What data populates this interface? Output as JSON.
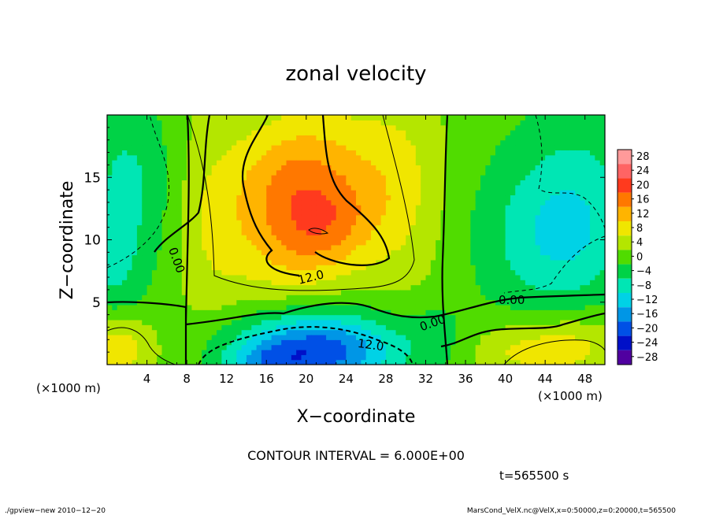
{
  "chart_data": {
    "type": "heatmap",
    "title": "zonal velocity",
    "xlabel": "X−coordinate",
    "ylabel": "Z−coordinate",
    "x_unit_left": "(×1000 m)",
    "x_unit_right": "(×1000 m)",
    "xlim": [
      0,
      50
    ],
    "ylim": [
      0,
      20
    ],
    "x_ticks": [
      {
        "value": 4,
        "label": "4"
      },
      {
        "value": 8,
        "label": "8"
      },
      {
        "value": 12,
        "label": "12"
      },
      {
        "value": 16,
        "label": "16"
      },
      {
        "value": 20,
        "label": "20"
      },
      {
        "value": 24,
        "label": "24"
      },
      {
        "value": 28,
        "label": "28"
      },
      {
        "value": 32,
        "label": "32"
      },
      {
        "value": 36,
        "label": "36"
      },
      {
        "value": 40,
        "label": "40"
      },
      {
        "value": 44,
        "label": "44"
      },
      {
        "value": 48,
        "label": "48"
      }
    ],
    "y_ticks": [
      {
        "value": 5,
        "label": "5"
      },
      {
        "value": 10,
        "label": "10"
      },
      {
        "value": 15,
        "label": "15"
      }
    ],
    "colorbar": {
      "levels": [
        28,
        24,
        20,
        16,
        12,
        8,
        4,
        0,
        -4,
        -8,
        -12,
        -16,
        -20,
        -24,
        -28
      ],
      "labels": [
        "28",
        "24",
        "20",
        "16",
        "12",
        "8",
        "4",
        "0",
        "−4",
        "−8",
        "−12",
        "−16",
        "−20",
        "−24",
        "−28"
      ],
      "colors": [
        "#ff9a9a",
        "#ff6464",
        "#ff3a1e",
        "#ff7800",
        "#ffb400",
        "#f0e600",
        "#b4e600",
        "#50dc00",
        "#00d246",
        "#00e6b4",
        "#00d2e6",
        "#0096e6",
        "#0050e6",
        "#0010c8",
        "#5000a0"
      ]
    },
    "contour_labels": [
      "0.00",
      "12.0",
      "0.00",
      "0.00",
      "12.0"
    ],
    "contour_interval_text": "CONTOUR INTERVAL = 6.000E+00",
    "time_text": "t=565500 s",
    "footer_left": "./gpview−new   2010−12−20",
    "footer_right": "MarsCond_VelX.nc@VelX,x=0:50000,z=0:20000,t=565500",
    "field_blobs": [
      {
        "x": 20,
        "z": 13,
        "sx": 6.0,
        "sz": 4.5,
        "u": 14,
        "rot": -0.35
      },
      {
        "x": 22,
        "z": 10.8,
        "sx": 3.5,
        "sz": 2.2,
        "u": 5,
        "rot": -0.3
      },
      {
        "x": 18,
        "z": 15.5,
        "sx": 3.5,
        "sz": 3.0,
        "u": 3,
        "rot": 0
      },
      {
        "x": 21,
        "z": 1.2,
        "sx": 6.0,
        "sz": 2.2,
        "u": -22,
        "rot": 0
      },
      {
        "x": 16,
        "z": 0.3,
        "sx": 3.0,
        "sz": 1.0,
        "u": -6,
        "rot": 0
      },
      {
        "x": 2,
        "z": 14,
        "sx": 3.5,
        "sz": 6.0,
        "u": -8,
        "rot": 0
      },
      {
        "x": 0.5,
        "z": 7,
        "sx": 2.0,
        "sz": 3.0,
        "u": -4,
        "rot": 0
      },
      {
        "x": 46,
        "z": 10,
        "sx": 5.0,
        "sz": 4.0,
        "u": -9,
        "rot": 0
      },
      {
        "x": 48,
        "z": 16,
        "sx": 4.0,
        "sz": 4.0,
        "u": -4,
        "rot": 0
      },
      {
        "x": 42,
        "z": 12,
        "sx": 6.0,
        "sz": 8.0,
        "u": -3,
        "rot": 0
      },
      {
        "x": 1,
        "z": 1.5,
        "sx": 2.5,
        "sz": 1.8,
        "u": 9,
        "rot": 0
      },
      {
        "x": 46,
        "z": 1.5,
        "sx": 4.0,
        "sz": 1.8,
        "u": 8,
        "rot": 0
      },
      {
        "x": 40,
        "z": 1.0,
        "sx": 3.0,
        "sz": 1.5,
        "u": 4,
        "rot": 0
      },
      {
        "x": 33,
        "z": 2.5,
        "sx": 2.0,
        "sz": 2.0,
        "u": -3,
        "rot": 0
      },
      {
        "x": 10,
        "z": 12,
        "sx": 2.5,
        "sz": 7.0,
        "u": 3,
        "rot": 0
      },
      {
        "x": 30,
        "z": 14,
        "sx": 3.0,
        "sz": 6.0,
        "u": 4,
        "rot": 0
      }
    ],
    "field_background": {
      "base": 3,
      "z_gradient": 0
    }
  }
}
